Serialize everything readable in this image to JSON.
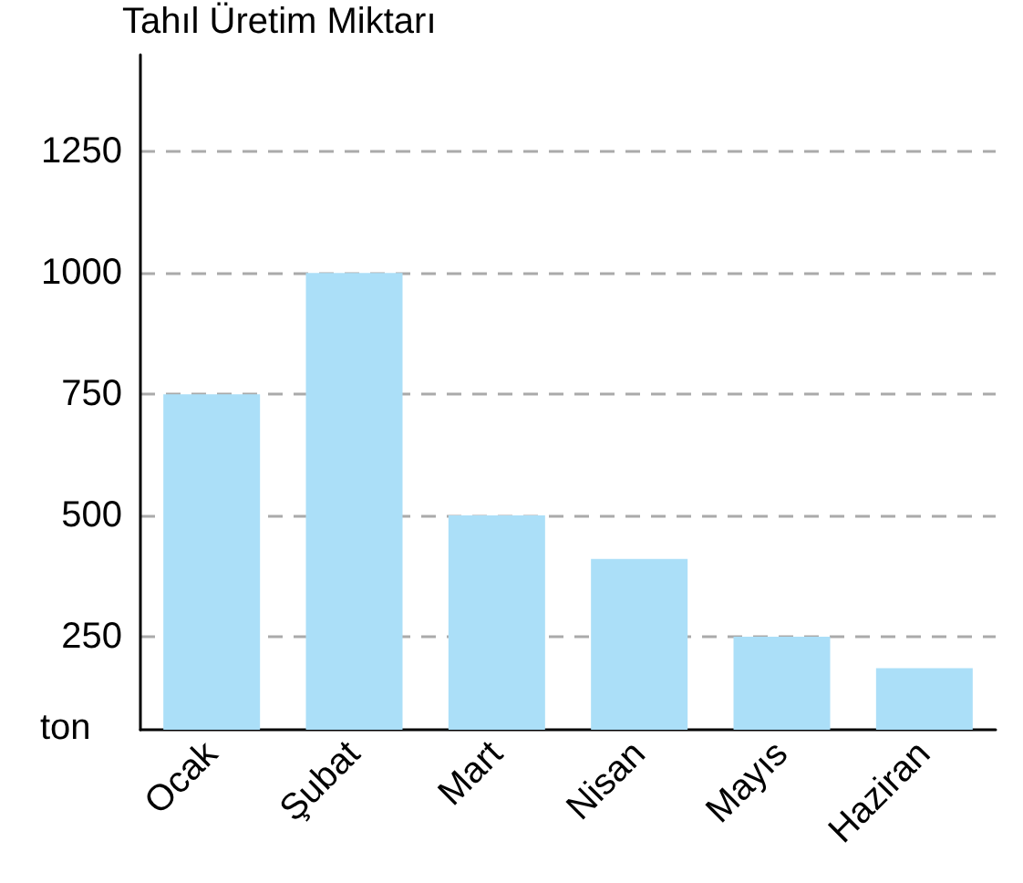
{
  "chart_data": {
    "type": "bar",
    "ylabel": "Tahıl Üretim Miktarı",
    "annotations": [
      "ton"
    ],
    "categories": [
      "Ocak",
      "Şubat",
      "Mart",
      "Nisan",
      "Mayıs",
      "Haziran"
    ],
    "values": [
      750,
      1000,
      500,
      410,
      250,
      185
    ],
    "color": "#abdff8",
    "ylim": [
      58,
      1450
    ],
    "yticks": [
      250,
      500,
      750,
      1000,
      1250
    ],
    "grid": "y",
    "line_style": "dashed"
  }
}
